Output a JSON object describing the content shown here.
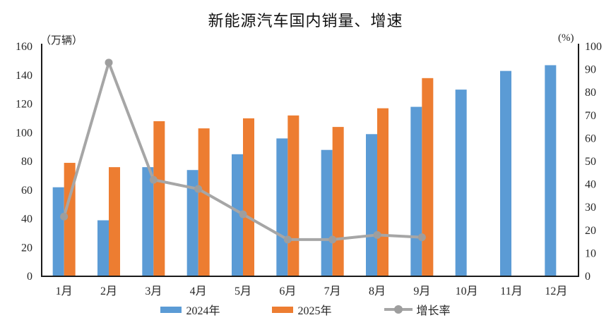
{
  "title": "新能源汽车国内销量、增速",
  "chart_data": {
    "type": "bar+line combo",
    "title": "新能源汽车国内销量、增速",
    "categories": [
      "1月",
      "2月",
      "3月",
      "4月",
      "5月",
      "6月",
      "7月",
      "8月",
      "9月",
      "10月",
      "11月",
      "12月"
    ],
    "series": [
      {
        "name": "2024年",
        "type": "bar",
        "axis": "left",
        "color": "#5b9bd5",
        "values": [
          62,
          39,
          76,
          74,
          85,
          96,
          88,
          99,
          118,
          130,
          143,
          147
        ]
      },
      {
        "name": "2025年",
        "type": "bar",
        "axis": "left",
        "color": "#ed7d31",
        "values": [
          79,
          76,
          108,
          103,
          110,
          112,
          104,
          117,
          138,
          null,
          null,
          null
        ]
      },
      {
        "name": "增长率",
        "type": "line",
        "axis": "right",
        "color": "#a6a6a6",
        "marker_color": "#9e9e9e",
        "values": [
          26,
          93,
          42,
          38,
          27,
          16,
          16,
          18,
          17,
          null,
          null,
          null
        ]
      }
    ],
    "left_axis": {
      "unit": "（万辆）",
      "min": 0,
      "max": 160,
      "step": 20,
      "tick_labels": [
        "0",
        "20",
        "40",
        "60",
        "80",
        "100",
        "120",
        "140",
        "160"
      ]
    },
    "right_axis": {
      "unit": "(%)",
      "min": 0,
      "max": 100,
      "step": 10,
      "tick_labels": [
        "0",
        "10",
        "20",
        "30",
        "40",
        "50",
        "60",
        "70",
        "80",
        "90",
        "100"
      ]
    },
    "legend_position": "bottom",
    "grid": "off",
    "axis_color": "#1a1a1a",
    "tick_label_color": "#262626"
  }
}
